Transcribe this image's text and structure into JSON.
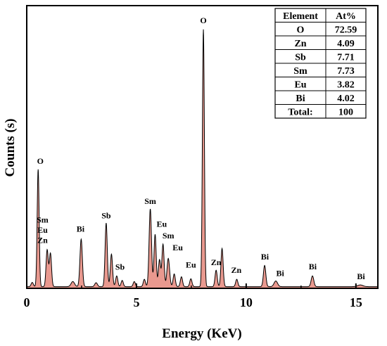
{
  "chart_data": {
    "type": "area",
    "xlabel": "Energy (KeV)",
    "ylabel": "Counts (s)",
    "xlim": [
      0,
      16
    ],
    "ylim": [
      0,
      1000
    ],
    "xticks": [
      0,
      5,
      10,
      15
    ],
    "colors": {
      "fill": "#e9998f",
      "fill_dark": "#d8685c",
      "line": "#000000"
    },
    "peaks": [
      {
        "x": 0.52,
        "y": 415,
        "w": 0.045
      },
      {
        "x": 0.25,
        "y": 15,
        "w": 0.05
      },
      {
        "x": 0.93,
        "y": 130,
        "w": 0.05
      },
      {
        "x": 1.08,
        "y": 118,
        "w": 0.05
      },
      {
        "x": 2.1,
        "y": 18,
        "w": 0.08
      },
      {
        "x": 2.48,
        "y": 168,
        "w": 0.055
      },
      {
        "x": 3.16,
        "y": 14,
        "w": 0.06
      },
      {
        "x": 3.62,
        "y": 225,
        "w": 0.05
      },
      {
        "x": 3.86,
        "y": 115,
        "w": 0.05
      },
      {
        "x": 4.1,
        "y": 38,
        "w": 0.05
      },
      {
        "x": 4.35,
        "y": 22,
        "w": 0.05
      },
      {
        "x": 4.9,
        "y": 18,
        "w": 0.05
      },
      {
        "x": 5.36,
        "y": 26,
        "w": 0.05
      },
      {
        "x": 5.63,
        "y": 275,
        "w": 0.055
      },
      {
        "x": 5.85,
        "y": 185,
        "w": 0.05
      },
      {
        "x": 6.05,
        "y": 95,
        "w": 0.05
      },
      {
        "x": 6.21,
        "y": 150,
        "w": 0.05
      },
      {
        "x": 6.45,
        "y": 100,
        "w": 0.06
      },
      {
        "x": 6.72,
        "y": 45,
        "w": 0.05
      },
      {
        "x": 7.05,
        "y": 35,
        "w": 0.05
      },
      {
        "x": 7.48,
        "y": 28,
        "w": 0.05
      },
      {
        "x": 8.05,
        "y": 910,
        "w": 0.045
      },
      {
        "x": 8.63,
        "y": 58,
        "w": 0.05
      },
      {
        "x": 8.9,
        "y": 135,
        "w": 0.05
      },
      {
        "x": 9.57,
        "y": 26,
        "w": 0.05
      },
      {
        "x": 10.84,
        "y": 75,
        "w": 0.055
      },
      {
        "x": 11.35,
        "y": 20,
        "w": 0.08
      },
      {
        "x": 13.02,
        "y": 38,
        "w": 0.06
      },
      {
        "x": 15.2,
        "y": 6,
        "w": 0.12
      }
    ],
    "annotations": [
      {
        "text": "O",
        "x": 0.62,
        "y": 440
      },
      {
        "text": "Sm",
        "x": 0.72,
        "y": 232
      },
      {
        "text": "Eu",
        "x": 0.72,
        "y": 196
      },
      {
        "text": "Zn",
        "x": 0.72,
        "y": 160
      },
      {
        "text": "Bi",
        "x": 2.45,
        "y": 200
      },
      {
        "text": "Sb",
        "x": 3.62,
        "y": 248
      },
      {
        "text": "Sb",
        "x": 4.25,
        "y": 66
      },
      {
        "text": "Sm",
        "x": 5.63,
        "y": 298
      },
      {
        "text": "Eu",
        "x": 6.15,
        "y": 218
      },
      {
        "text": "Sm",
        "x": 6.45,
        "y": 176
      },
      {
        "text": "Eu",
        "x": 6.88,
        "y": 134
      },
      {
        "text": "Eu",
        "x": 7.48,
        "y": 74
      },
      {
        "text": "Zn",
        "x": 8.63,
        "y": 82
      },
      {
        "text": "Zn",
        "x": 9.55,
        "y": 55
      },
      {
        "text": "O",
        "x": 8.05,
        "y": 938
      },
      {
        "text": "Bi",
        "x": 10.85,
        "y": 102
      },
      {
        "text": "Bi",
        "x": 11.55,
        "y": 44
      },
      {
        "text": "Bi",
        "x": 13.03,
        "y": 67
      },
      {
        "text": "Bi",
        "x": 15.23,
        "y": 32
      }
    ],
    "table": {
      "header": [
        "Element",
        "At%"
      ],
      "rows": [
        [
          "O",
          "72.59"
        ],
        [
          "Zn",
          "4.09"
        ],
        [
          "Sb",
          "7.71"
        ],
        [
          "Sm",
          "7.73"
        ],
        [
          "Eu",
          "3.82"
        ],
        [
          "Bi",
          "4.02"
        ],
        [
          "Total:",
          "100"
        ]
      ]
    }
  }
}
